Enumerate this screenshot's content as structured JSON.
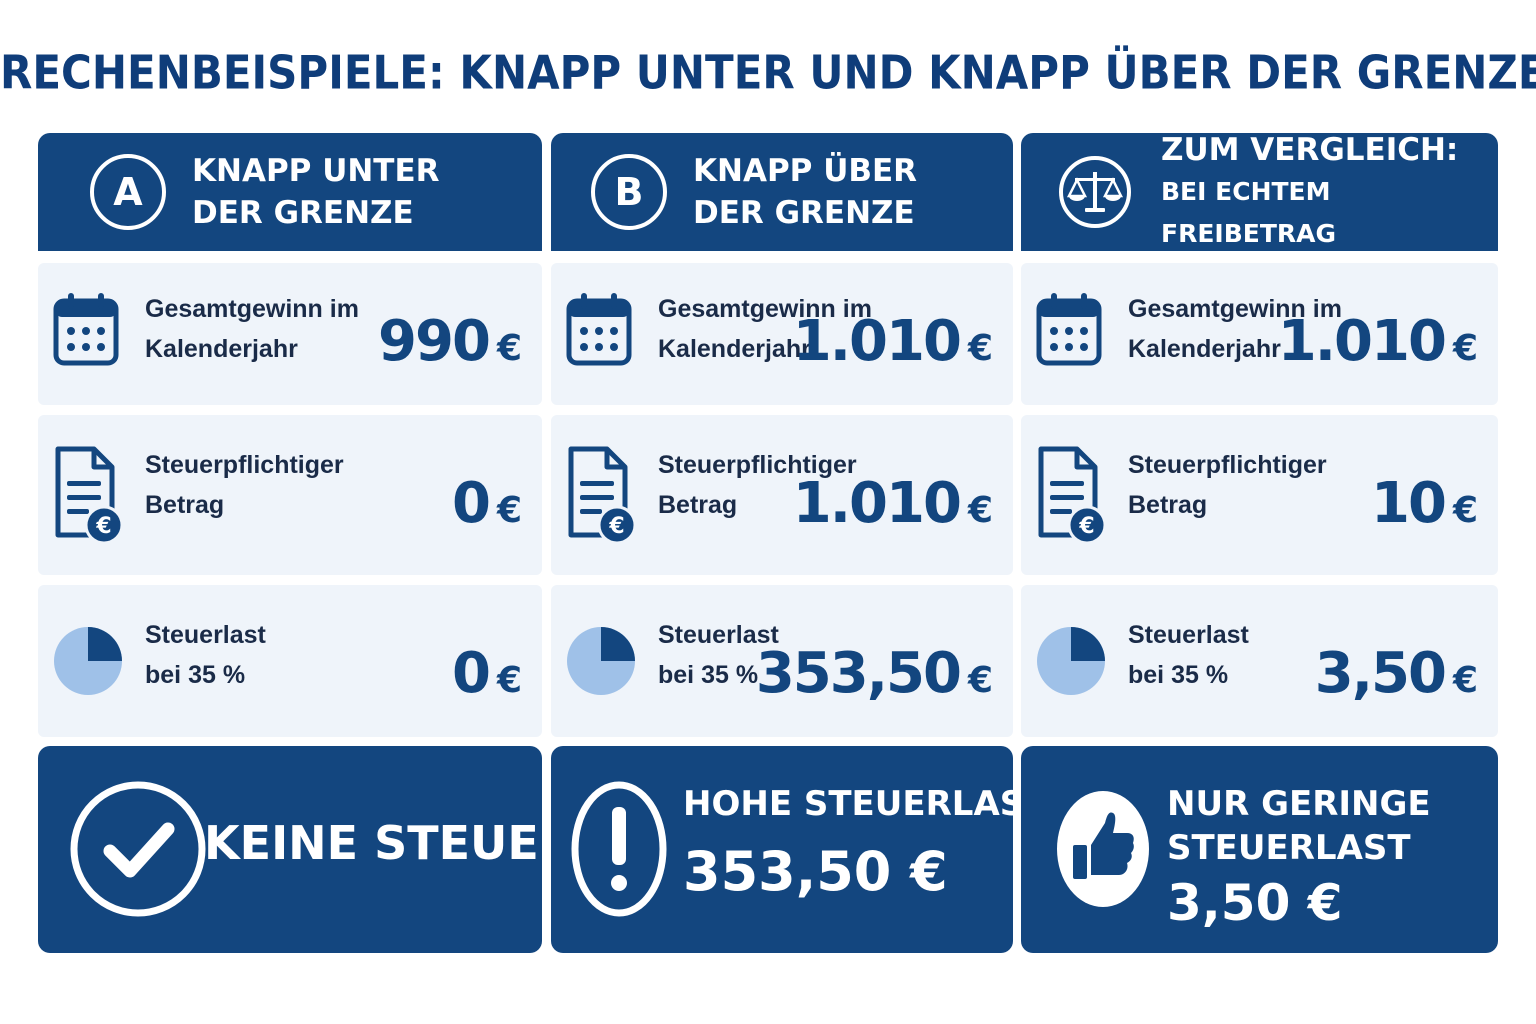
{
  "page": {
    "title": "RECHENBEISPIELE: KNAPP UNTER UND KNAPP ÜBER DER GRENZE"
  },
  "colors": {
    "primary": "#13467f",
    "row_background": "#eff4fa",
    "pie_light": "#9fc1e8",
    "pie_dark": "#13467f"
  },
  "columns": [
    {
      "badge": "A",
      "header_line1": "KNAPP UNTER",
      "header_line2": "DER GRENZE",
      "rows": [
        {
          "icon": "calendar-icon",
          "label_line1": "Gesamtgewinn im",
          "label_line2": "Kalenderjahr",
          "value": "990",
          "currency": "€"
        },
        {
          "icon": "document-euro-icon",
          "label_line1": "Steuerpflichtiger",
          "label_line2": "Betrag",
          "value": "0",
          "currency": "€"
        },
        {
          "icon": "pie-chart-icon",
          "label_line1": "Steuerlast",
          "label_line2": "bei 35 %",
          "value": "0",
          "currency": "€"
        }
      ],
      "result": {
        "icon": "checkmark-circle-icon",
        "text": "KEINE STEUER"
      }
    },
    {
      "badge": "B",
      "header_line1": "KNAPP ÜBER",
      "header_line2": "DER GRENZE",
      "rows": [
        {
          "icon": "calendar-icon",
          "label_line1": "Gesamtgewinn im",
          "label_line2": "Kalenderjahr",
          "value": "1.010",
          "currency": "€"
        },
        {
          "icon": "document-euro-icon",
          "label_line1": "Steuerpflichtiger",
          "label_line2": "Betrag",
          "value": "1.010",
          "currency": "€"
        },
        {
          "icon": "pie-chart-icon",
          "label_line1": "Steuerlast",
          "label_line2": "bei 35 %",
          "value": "353,50",
          "currency": "€"
        }
      ],
      "result": {
        "icon": "exclamation-circle-icon",
        "text_line1": "HOHE STEUERLAST",
        "text_line2": "353,50 €"
      }
    },
    {
      "badge_icon": "scale-icon",
      "header_line1": "ZUM VERGLEICH:",
      "header_line2": "BEI ECHTEM FREIBETRAG",
      "rows": [
        {
          "icon": "calendar-icon",
          "label_line1": "Gesamtgewinn im",
          "label_line2": "Kalenderjahr",
          "value": "1.010",
          "currency": "€"
        },
        {
          "icon": "document-euro-icon",
          "label_line1": "Steuerpflichtiger",
          "label_line2": "Betrag",
          "value": "10",
          "currency": "€"
        },
        {
          "icon": "pie-chart-icon",
          "label_line1": "Steuerlast",
          "label_line2": "bei 35 %",
          "value": "3,50",
          "currency": "€"
        }
      ],
      "result": {
        "icon": "thumbs-up-icon",
        "text_line1": "NUR GERINGE",
        "text_line2": "STEUERLAST",
        "text_line3": "3,50 €"
      }
    }
  ]
}
